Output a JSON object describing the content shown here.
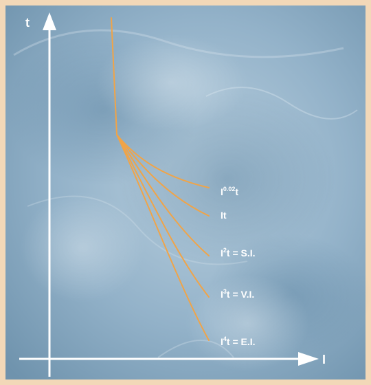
{
  "axes": {
    "y_label": "t",
    "x_label": "I"
  },
  "colors": {
    "curve": "#f0a448",
    "axis": "#ffffff",
    "frame": "#f2d8b8",
    "background": "#8fb0c8"
  },
  "curves": [
    {
      "base": "I",
      "sup": "0.02",
      "tail": "t"
    },
    {
      "base": "It",
      "sup": "",
      "tail": ""
    },
    {
      "base": "I",
      "sup": "2",
      "tail": "t = S.I."
    },
    {
      "base": "I",
      "sup": "3",
      "tail": "t = V.I."
    },
    {
      "base": "I",
      "sup": "4",
      "tail": "t = E.I."
    }
  ]
}
